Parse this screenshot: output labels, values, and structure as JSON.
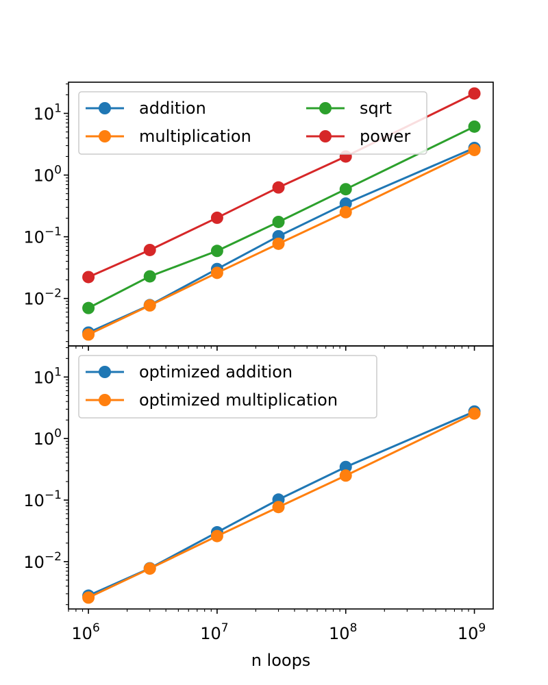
{
  "colors": {
    "blue": "#1f77b4",
    "orange": "#ff7f0e",
    "green": "#2ca02c",
    "red": "#d62728",
    "axes": "#000000",
    "legend_border": "#cccccc"
  },
  "chart_data": [
    {
      "type": "line",
      "x_scale": "log",
      "y_scale": "log",
      "xlim": [
        700000,
        1400000000
      ],
      "ylim": [
        0.0017,
        32
      ],
      "grid": false,
      "legend": "top-left, 2 columns",
      "xlabel": "",
      "ylabel": "",
      "xticks": [
        {
          "value": 1000000,
          "base": "10",
          "exp": "6"
        },
        {
          "value": 10000000,
          "base": "10",
          "exp": "7"
        },
        {
          "value": 100000000,
          "base": "10",
          "exp": "8"
        },
        {
          "value": 1000000000,
          "base": "10",
          "exp": "9"
        }
      ],
      "yticks": [
        {
          "value": 0.01,
          "base": "10",
          "exp": "−2"
        },
        {
          "value": 0.1,
          "base": "10",
          "exp": "−1"
        },
        {
          "value": 1,
          "base": "10",
          "exp": "0"
        },
        {
          "value": 10,
          "base": "10",
          "exp": "1"
        }
      ],
      "x": [
        1000000,
        3000000,
        10000000,
        30000000,
        100000000,
        1000000000
      ],
      "series": [
        {
          "name": "addition",
          "color": "#1f77b4",
          "values": [
            0.0028,
            0.0078,
            0.03,
            0.102,
            0.345,
            2.75
          ]
        },
        {
          "name": "multiplication",
          "color": "#ff7f0e",
          "values": [
            0.0026,
            0.0077,
            0.026,
            0.077,
            0.25,
            2.55
          ]
        },
        {
          "name": "sqrt",
          "color": "#2ca02c",
          "values": [
            0.007,
            0.0228,
            0.059,
            0.174,
            0.59,
            6.1
          ]
        },
        {
          "name": "power",
          "color": "#d62728",
          "values": [
            0.0222,
            0.061,
            0.203,
            0.63,
            2.0,
            21.0
          ]
        }
      ]
    },
    {
      "type": "line",
      "x_scale": "log",
      "y_scale": "log",
      "xlim": [
        700000,
        1400000000
      ],
      "ylim": [
        0.0017,
        32
      ],
      "grid": false,
      "legend": "top-left",
      "xlabel": "n loops",
      "ylabel": "",
      "xticks": [
        {
          "value": 1000000,
          "base": "10",
          "exp": "6"
        },
        {
          "value": 10000000,
          "base": "10",
          "exp": "7"
        },
        {
          "value": 100000000,
          "base": "10",
          "exp": "8"
        },
        {
          "value": 1000000000,
          "base": "10",
          "exp": "9"
        }
      ],
      "yticks": [
        {
          "value": 0.01,
          "base": "10",
          "exp": "−2"
        },
        {
          "value": 0.1,
          "base": "10",
          "exp": "−1"
        },
        {
          "value": 1,
          "base": "10",
          "exp": "0"
        },
        {
          "value": 10,
          "base": "10",
          "exp": "1"
        }
      ],
      "x": [
        1000000,
        3000000,
        10000000,
        30000000,
        100000000,
        1000000000
      ],
      "series": [
        {
          "name": "optimized addition",
          "color": "#1f77b4",
          "values": [
            0.0028,
            0.0078,
            0.03,
            0.102,
            0.345,
            2.75
          ]
        },
        {
          "name": "optimized multiplication",
          "color": "#ff7f0e",
          "values": [
            0.0026,
            0.0077,
            0.026,
            0.077,
            0.25,
            2.55
          ]
        }
      ]
    }
  ]
}
